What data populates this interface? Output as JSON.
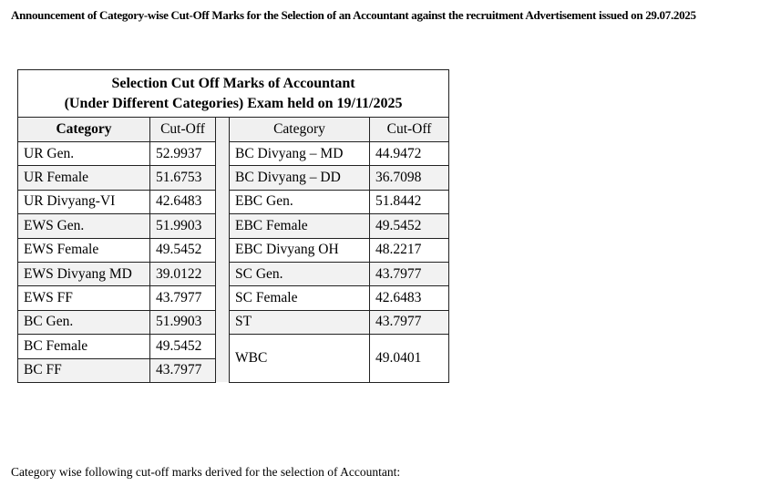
{
  "announcement": "Announcement of Category-wise Cut-Off Marks for the Selection of an Accountant against the recruitment Advertisement issued on 29.07.2025",
  "table": {
    "title_line1": "Selection Cut Off Marks of Accountant",
    "title_line2": "(Under Different Categories) Exam held on 19/11/2025",
    "headers": {
      "category_left": "Category",
      "cutoff_left": "Cut-Off",
      "category_right": "Category",
      "cutoff_right": "Cut-Off"
    },
    "left": [
      {
        "category": "UR Gen.",
        "cutoff": "52.9937"
      },
      {
        "category": "UR Female",
        "cutoff": "51.6753"
      },
      {
        "category": "UR Divyang-VI",
        "cutoff": "42.6483"
      },
      {
        "category": "EWS Gen.",
        "cutoff": "51.9903"
      },
      {
        "category": "EWS Female",
        "cutoff": "49.5452"
      },
      {
        "category": "EWS Divyang MD",
        "cutoff": "39.0122"
      },
      {
        "category": "EWS FF",
        "cutoff": "43.7977"
      },
      {
        "category": "BC Gen.",
        "cutoff": "51.9903"
      },
      {
        "category": "BC Female",
        "cutoff": "49.5452"
      },
      {
        "category": "BC FF",
        "cutoff": "43.7977"
      }
    ],
    "right": [
      {
        "category": "BC Divyang – MD",
        "cutoff": "44.9472"
      },
      {
        "category": "BC Divyang – DD",
        "cutoff": "36.7098"
      },
      {
        "category": "EBC Gen.",
        "cutoff": "51.8442"
      },
      {
        "category": "EBC Female",
        "cutoff": "49.5452"
      },
      {
        "category": "EBC Divyang OH",
        "cutoff": "48.2217"
      },
      {
        "category": "SC Gen.",
        "cutoff": "43.7977"
      },
      {
        "category": "SC Female",
        "cutoff": "42.6483"
      },
      {
        "category": "ST",
        "cutoff": "43.7977"
      },
      {
        "category": "WBC",
        "cutoff": "49.0401"
      }
    ]
  },
  "footer_text": "Category wise following cut-off marks derived for the selection of Accountant:"
}
